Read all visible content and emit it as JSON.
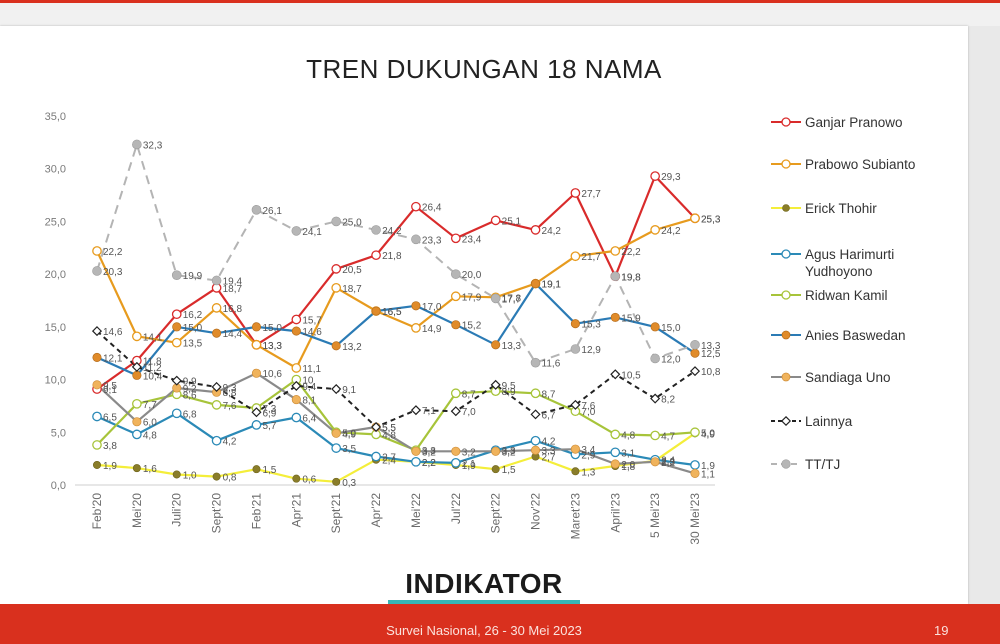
{
  "footer": {
    "text": "Survei Nasional, 26 - 30 Mei 2023",
    "page": "19"
  },
  "logo": {
    "text": "INDIKATOR"
  },
  "colors": {
    "footer": "#d9301e",
    "accent_teal": "#37b6b6"
  },
  "chart_data": {
    "type": "line",
    "title": "TREN DUKUNGAN 18 NAMA",
    "xlabel": "",
    "ylabel": "",
    "ylim": [
      0,
      35
    ],
    "yticks": [
      "0,0",
      "5,0",
      "10,0",
      "15,0",
      "20,0",
      "25,0",
      "30,0",
      "35,0"
    ],
    "grid": false,
    "legend_position": "right",
    "x": [
      "Feb'20",
      "Mei'20",
      "Juli'20",
      "Sept'20",
      "Feb'21",
      "Apr'21",
      "Sept'21",
      "Apr'22",
      "Mei'22",
      "Jul'22",
      "Sept'22",
      "Nov'22",
      "Maret'23",
      "April'23",
      "5 Mei'23",
      "30 Mei'23"
    ],
    "series": [
      {
        "name": "Ganjar Pranowo",
        "color": "#d92b2b",
        "marker": "circle-open",
        "dash": "solid",
        "values": [
          9.1,
          11.8,
          16.2,
          18.7,
          13.3,
          15.7,
          20.5,
          21.8,
          26.4,
          23.4,
          25.1,
          24.2,
          27.7,
          19.8,
          29.3,
          25.3
        ],
        "labels": [
          "9,1",
          "11,8",
          "16,2",
          "18,7",
          "13,3",
          "15,7",
          "20,5",
          "21,8",
          "26,4",
          "23,4",
          "25,1",
          "24,2",
          "27,7",
          "19,8",
          "29,3",
          "25,3"
        ]
      },
      {
        "name": "Prabowo Subianto",
        "color": "#e79b1e",
        "marker": "circle-open",
        "dash": "solid",
        "values": [
          22.2,
          14.1,
          13.5,
          16.8,
          13.3,
          11.1,
          18.7,
          16.5,
          14.9,
          17.9,
          17.8,
          19.1,
          21.7,
          22.2,
          24.2,
          25.3
        ],
        "labels": [
          "22,2",
          "14,1",
          "13,5",
          "16,8",
          "13,3",
          "11,1",
          "18,7",
          "16,5",
          "14,9",
          "17,9",
          "17,8",
          "19,1",
          "21,7",
          "22,2",
          "24,2",
          "25,3"
        ]
      },
      {
        "name": "Erick Thohir",
        "color": "#f4ee3a",
        "marker": "dot-dark",
        "dash": "solid",
        "values": [
          1.9,
          1.6,
          1.0,
          0.8,
          1.5,
          0.6,
          0.3,
          2.4,
          2.2,
          1.9,
          1.5,
          2.7,
          1.3,
          1.8,
          2.3,
          4.9
        ],
        "labels": [
          "1,9",
          "1,6",
          "1,0",
          "0,8",
          "1,5",
          "0,6",
          "0,3",
          "2,4",
          "2,2",
          "1,9",
          "1,5",
          "2,7",
          "1,3",
          "1,8",
          "2,3",
          "4,9"
        ]
      },
      {
        "name": "Agus Harimurti Yudhoyono",
        "color": "#2b8ab7",
        "marker": "circle-open",
        "dash": "solid",
        "values": [
          6.5,
          4.8,
          6.8,
          4.2,
          5.7,
          6.4,
          3.5,
          2.7,
          2.2,
          2.1,
          3.3,
          4.2,
          2.9,
          3.1,
          2.4,
          1.9
        ],
        "labels": [
          "6,5",
          "4,8",
          "6,8",
          "4,2",
          "5,7",
          "6,4",
          "3,5",
          "2,7",
          "2,2",
          "2,1",
          "3,3",
          "4,2",
          "2,9",
          "3,1",
          "2,4",
          "1,9"
        ]
      },
      {
        "name": "Ridwan Kamil",
        "color": "#a7c43a",
        "marker": "circle-open",
        "dash": "solid",
        "values": [
          3.8,
          7.7,
          8.6,
          7.6,
          7.3,
          10.0,
          5.0,
          4.8,
          3.3,
          8.7,
          8.9,
          8.7,
          7.0,
          4.8,
          4.7,
          5.0
        ],
        "labels": [
          "3,8",
          "7,7",
          "8,6",
          "7,6",
          "7,3",
          "10",
          "5,0",
          "4,8",
          "3,3",
          "8,7",
          "8,9",
          "8,7",
          "7,0",
          "4,8",
          "4,7",
          "5,0"
        ]
      },
      {
        "name": "Anies Baswedan",
        "color": "#2b7bb5",
        "marker": "dot-orange",
        "dash": "solid",
        "values": [
          12.1,
          10.4,
          15.0,
          14.4,
          15.0,
          14.6,
          13.2,
          16.5,
          17.0,
          15.2,
          13.3,
          19.1,
          15.3,
          15.9,
          15.0,
          12.5
        ],
        "labels": [
          "12,1",
          "10,4",
          "15,0",
          "14,4",
          "15,0",
          "14,6",
          "13,2",
          "16,5",
          "17,0",
          "15,2",
          "13,3",
          "19,1",
          "15,3",
          "15,9",
          "15,0",
          "12,5"
        ]
      },
      {
        "name": "Sandiaga Uno",
        "color": "#8a8a8a",
        "marker": "dot-orange-light",
        "dash": "solid",
        "values": [
          9.5,
          6.0,
          9.2,
          8.8,
          10.6,
          8.1,
          4.9,
          5.5,
          3.2,
          3.2,
          3.2,
          3.3,
          3.4,
          2.0,
          2.2,
          1.1
        ],
        "labels": [
          "9,5",
          "6,0",
          "9,2",
          "8,8",
          "10,6",
          "8,1",
          "4,9",
          "5,5",
          "3,2",
          "3,2",
          "3,2",
          "3,3",
          "3,4",
          "2,0",
          "2,2",
          "1,1"
        ]
      },
      {
        "name": "Lainnya",
        "color": "#222222",
        "marker": "diamond-open",
        "dash": "dashed",
        "values": [
          14.6,
          11.2,
          9.9,
          9.3,
          6.9,
          9.4,
          9.1,
          5.5,
          7.1,
          7.0,
          9.5,
          6.7,
          7.6,
          10.5,
          8.2,
          10.8
        ],
        "labels": [
          "14,6",
          "11,2",
          "9,9",
          "9,3",
          "6,9",
          "9,4",
          "9,1",
          "5,5",
          "7,1",
          "7,0",
          "9,5",
          "6,7",
          "7,6",
          "10,5",
          "8,2",
          "10,8"
        ]
      },
      {
        "name": "TT/TJ",
        "color": "#b4b4b4",
        "marker": "dot-gray",
        "dash": "dashed",
        "values": [
          20.3,
          32.3,
          19.9,
          19.4,
          26.1,
          24.1,
          25.0,
          24.2,
          23.3,
          20.0,
          17.7,
          11.6,
          12.9,
          19.8,
          12.0,
          13.3
        ],
        "labels": [
          "20,3",
          "32,3",
          "19,9",
          "19,4",
          "26,1",
          "24,1",
          "25,0",
          "24,2",
          "23,3",
          "20,0",
          "17,7",
          "11,6",
          "12,9",
          "19,8",
          "12,0",
          "13,3"
        ]
      }
    ]
  }
}
